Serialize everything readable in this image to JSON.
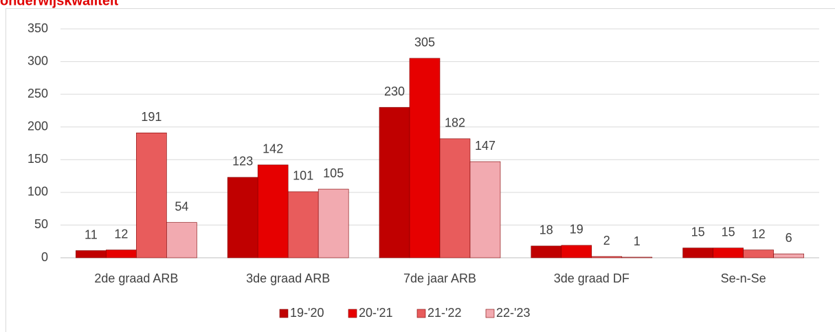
{
  "chart_data": {
    "type": "bar",
    "title": "onderwijskwaliteit",
    "categories": [
      "2de graad ARB",
      "3de graad ARB",
      "7de jaar ARB",
      "3de graad DF",
      "Se-n-Se"
    ],
    "series": [
      {
        "name": "19-'20",
        "color": "#c00000",
        "values": [
          11,
          123,
          230,
          18,
          15
        ]
      },
      {
        "name": "20-'21",
        "color": "#e60000",
        "values": [
          12,
          142,
          305,
          19,
          15
        ]
      },
      {
        "name": "21-'22",
        "color": "#e85c5c",
        "values": [
          191,
          101,
          182,
          2,
          12
        ]
      },
      {
        "name": "22-'23",
        "color": "#f2aab0",
        "values": [
          54,
          105,
          147,
          1,
          6
        ]
      }
    ],
    "ylim": [
      0,
      350
    ],
    "yticks": [
      0,
      50,
      100,
      150,
      200,
      250,
      300,
      350
    ],
    "grid": true,
    "legend": "bottom"
  }
}
